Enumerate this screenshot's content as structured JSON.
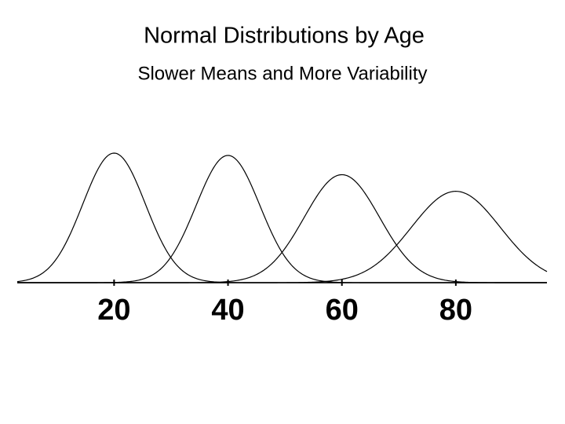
{
  "chart_data": {
    "type": "density",
    "title": "Normal Distributions by Age",
    "subtitle": "Slower Means and More Variability",
    "series": [
      {
        "color": "#000000",
        "mean": 20,
        "sd": 5.5
      },
      {
        "color": "#000000",
        "mean": 40,
        "sd": 5.6
      },
      {
        "color": "#000000",
        "mean": 60,
        "sd": 6.6
      },
      {
        "color": "#000000",
        "mean": 80,
        "sd": 7.8
      }
    ],
    "xlim": [
      3,
      96
    ],
    "xticks": [
      20,
      40,
      60,
      80
    ],
    "ylim": [
      0,
      0.08
    ]
  }
}
